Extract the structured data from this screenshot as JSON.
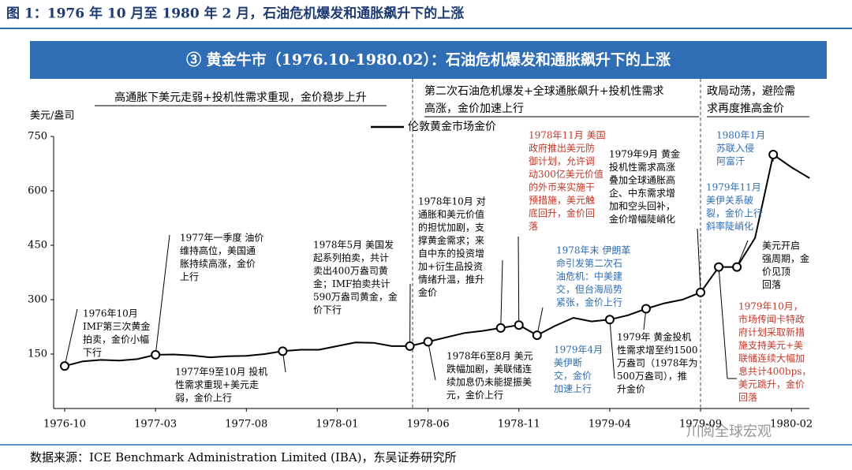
{
  "header": {
    "title": "图 1：1976 年 10 月至 1980 年 2 月，石油危机爆发和通胀飙升下的上涨",
    "banner": "③ 黄金牛市（1976.10-1980.02）：石油危机爆发和通胀飙升下的上涨"
  },
  "phases": [
    [
      "高通胀下美元走弱+投机性需求重现，金价稳步上升"
    ],
    [
      "第二次石油危机爆发+全球通胀飙升+投机性需求",
      "高涨，金价加速上行"
    ],
    [
      "政局动荡，避险需",
      "求再度推高金价"
    ]
  ],
  "chart_data": {
    "type": "line",
    "y_label": "美元/盎司",
    "categories": [
      "1976-10",
      null,
      null,
      null,
      null,
      "1977-03",
      null,
      null,
      null,
      null,
      "1977-08",
      null,
      null,
      null,
      null,
      "1978-01",
      null,
      null,
      null,
      null,
      "1978-06",
      null,
      null,
      null,
      null,
      "1978-11",
      null,
      null,
      null,
      null,
      "1979-04",
      null,
      null,
      null,
      null,
      "1979-09",
      null,
      null,
      null,
      null,
      "1980-02",
      null
    ],
    "series": [
      {
        "name": "伦敦黄金市场金价",
        "color": "#000000",
        "values": [
          117,
          130,
          134,
          132,
          136,
          148,
          149,
          146,
          141,
          144,
          145,
          150,
          158,
          162,
          162,
          172,
          182,
          181,
          172,
          172,
          184,
          196,
          208,
          214,
          222,
          230,
          202,
          228,
          250,
          240,
          245,
          257,
          275,
          290,
          300,
          320,
          390,
          390,
          470,
          700,
          665,
          635
        ]
      }
    ],
    "ylim": [
      0,
      750
    ],
    "yticks": [
      150,
      300,
      450,
      600,
      750
    ],
    "annotations": [
      {
        "color": "#000000",
        "lines": [
          "1976年10月",
          "IMF第三次黄金",
          "拍卖，金价小幅",
          "下行"
        ]
      },
      {
        "color": "#000000",
        "lines": [
          "1977年一季度 油价",
          "维持高位，美国通",
          "胀持续高涨，金价",
          "上行"
        ]
      },
      {
        "color": "#000000",
        "lines": [
          "1977年9至10月 投机",
          "性需求重现+美元走",
          "弱，金价上行"
        ]
      },
      {
        "color": "#000000",
        "lines": [
          "1978年5月 美国发",
          "起系列拍卖，共计",
          "卖出400万盎司黄",
          "金；IMF拍卖共计",
          "590万盎司黄金，金",
          "价下行"
        ]
      },
      {
        "color": "#000000",
        "lines": [
          "1978年10月 对",
          "通胀和美元价值",
          "的担忧加剧，支",
          "撑黄金需求；来",
          "自中东的投资增",
          "加+衍生品投资",
          "情绪升温，推升",
          "金价"
        ]
      },
      {
        "color": "#000000",
        "lines": [
          "1978年6至8月 美元",
          "跌幅加剧，美联储连",
          "续加息仍未能提振美",
          "元，金价上行"
        ]
      },
      {
        "color": "#c0392b",
        "lines": [
          "1978年11月 美国",
          "政府推出美元防",
          "御计划，允许调",
          "动300亿美元价值",
          "的外币来实施干",
          "预措施，美元触",
          "底回升，金价回",
          "落"
        ]
      },
      {
        "color": "#2e6db4",
        "lines": [
          "1978年末 伊朗革",
          "命引发第二次石",
          "油危机：中美建",
          "交，但台海局势",
          "紧张，金价上行"
        ]
      },
      {
        "color": "#2e6db4",
        "lines": [
          "1979年4月",
          "美伊断",
          "交，金价",
          "加速上行"
        ]
      },
      {
        "color": "#000000",
        "lines": [
          "1979年 黄金投机",
          "性需求增至约1500",
          "万盎司（1978年为",
          "500万盎司），推",
          "升金价"
        ]
      },
      {
        "color": "#000000",
        "lines": [
          "1979年9月 黄金",
          "投机性需求高涨",
          "叠加全球通胀高",
          "企、中东需求增",
          "加和空头回补，",
          "金价增幅陡峭化"
        ]
      },
      {
        "color": "#2e6db4",
        "lines": [
          "1980年1月",
          "苏联入侵",
          "阿富汗"
        ]
      },
      {
        "color": "#2e6db4",
        "lines": [
          "1979年11月",
          "美伊关系破",
          "裂，金价上行",
          "斜率陡峭化"
        ]
      },
      {
        "color": "#000000",
        "lines": [
          "美元开启",
          "强周期，金",
          "价见顶",
          "回落"
        ]
      },
      {
        "color": "#c0392b",
        "lines": [
          "1979年10月，",
          "市场传闻卡特政",
          "府计划采取新措",
          "施支持美元+美",
          "联储连续大幅加",
          "息共计400bps，",
          "美元跳升，金价",
          "回落"
        ]
      }
    ]
  },
  "source": "数据来源：ICE Benchmark Administration Limited (IBA)，东吴证券研究所",
  "watermark": "川阅全球宏观"
}
